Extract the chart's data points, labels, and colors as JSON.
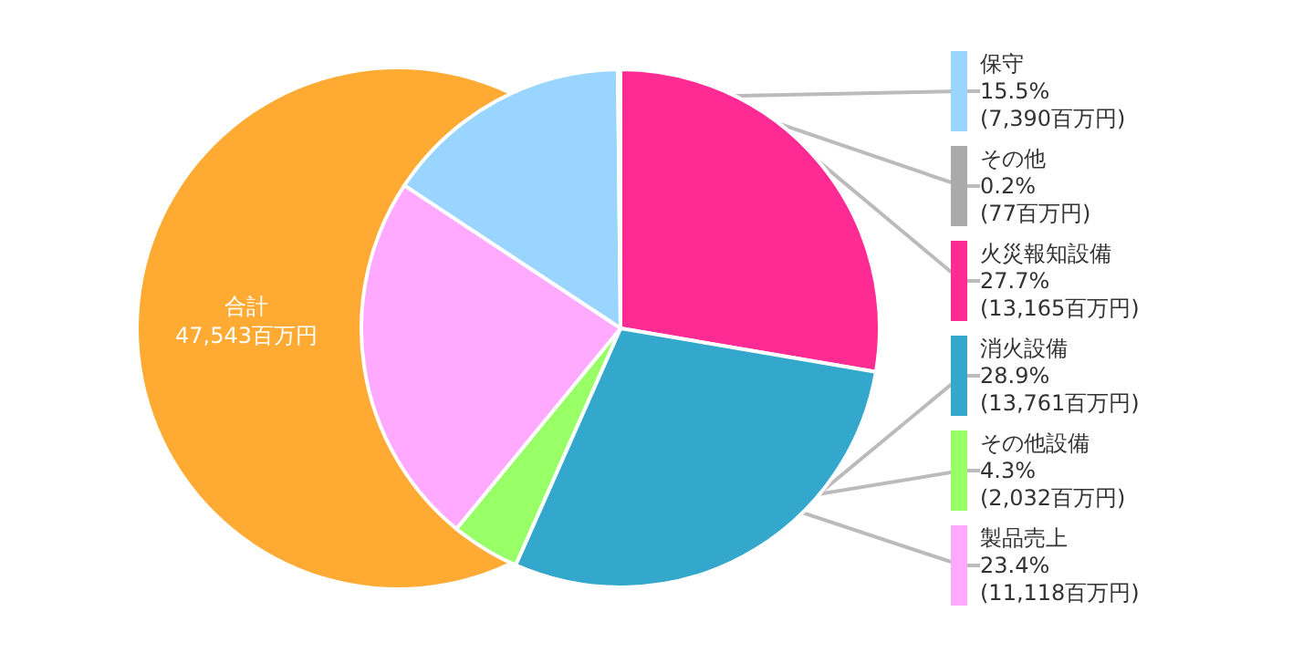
{
  "chart_data": {
    "type": "pie",
    "categories": [
      "保守",
      "その他",
      "火災報知設備",
      "消火設備",
      "その他設備",
      "製品売上"
    ],
    "values": [
      7390,
      77,
      13165,
      13761,
      2032,
      11118
    ],
    "value_labels": [
      "15.5%\n(7,390百万円)",
      "0.2%\n(77百万円)",
      "27.7%\n(13,165百万円)",
      "28.9%\n(13,761百万円)",
      "4.3%\n(2,032百万円)",
      "23.4%\n(11,118百万円)"
    ],
    "colors": [
      "#99d5ff",
      "#aaaaaa",
      "#ff2b95",
      "#33a8cc",
      "#99ff66",
      "#ffaaff"
    ],
    "annotations": [
      "合計\n47,543百万円"
    ],
    "legend": false
  }
}
